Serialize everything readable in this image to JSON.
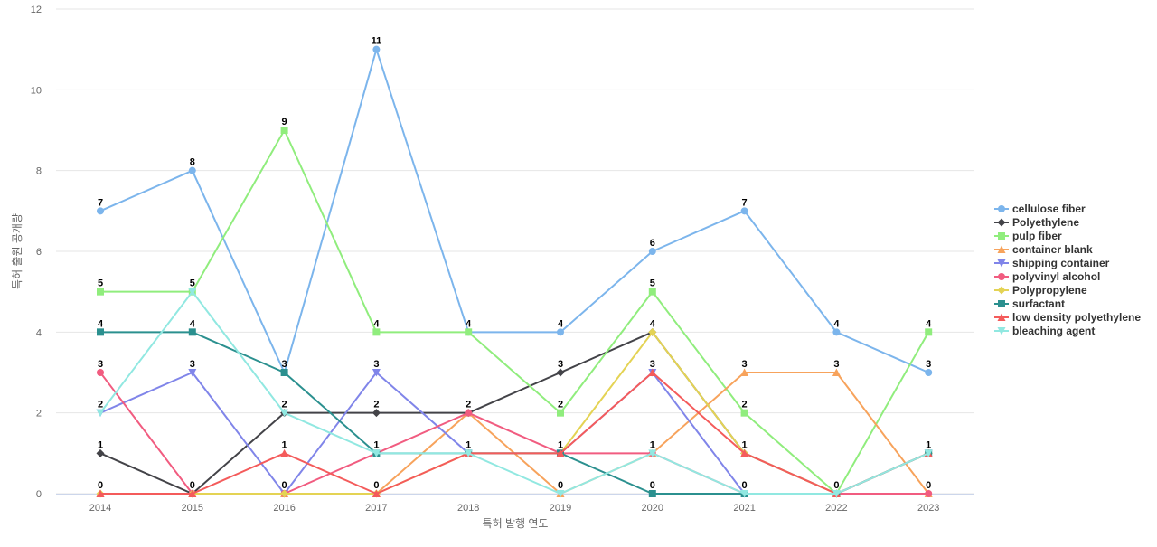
{
  "chart_data": {
    "type": "line",
    "title": "",
    "xlabel": "특허 발행 연도",
    "ylabel": "특허 출원 공개량",
    "ylim": [
      0,
      12
    ],
    "yticks": [
      0,
      2,
      4,
      6,
      8,
      10,
      12
    ],
    "grid": true,
    "legend_position": "right",
    "x": [
      "2014",
      "2015",
      "2016",
      "2017",
      "2018",
      "2019",
      "2020",
      "2021",
      "2022",
      "2023"
    ],
    "series": [
      {
        "name": "cellulose fiber",
        "color": "#7cb5ec",
        "marker": "circle",
        "values": [
          7,
          8,
          3,
          11,
          4,
          4,
          6,
          7,
          4,
          3
        ]
      },
      {
        "name": "Polyethylene",
        "color": "#434348",
        "marker": "diamond",
        "values": [
          1,
          0,
          2,
          2,
          2,
          3,
          4,
          1,
          0,
          1
        ]
      },
      {
        "name": "pulp fiber",
        "color": "#90ed7d",
        "marker": "square",
        "values": [
          5,
          5,
          9,
          4,
          4,
          2,
          5,
          2,
          0,
          4
        ]
      },
      {
        "name": "container blank",
        "color": "#f7a35c",
        "marker": "triangle",
        "values": [
          0,
          0,
          0,
          0,
          2,
          0,
          1,
          3,
          3,
          0
        ]
      },
      {
        "name": "shipping container",
        "color": "#8085e9",
        "marker": "triangle-down",
        "values": [
          2,
          3,
          0,
          3,
          1,
          1,
          3,
          0,
          0,
          1
        ]
      },
      {
        "name": "polyvinyl alcohol",
        "color": "#f15c80",
        "marker": "circle",
        "values": [
          3,
          0,
          0,
          1,
          2,
          1,
          1,
          0,
          0,
          0
        ]
      },
      {
        "name": "Polypropylene",
        "color": "#e4d354",
        "marker": "diamond",
        "values": [
          0,
          0,
          0,
          0,
          1,
          1,
          4,
          1,
          0,
          1
        ]
      },
      {
        "name": "surfactant",
        "color": "#2b908f",
        "marker": "square",
        "values": [
          4,
          4,
          3,
          1,
          1,
          1,
          0,
          0,
          0,
          1
        ]
      },
      {
        "name": "low density polyethylene",
        "color": "#f45b5b",
        "marker": "triangle",
        "values": [
          0,
          0,
          1,
          0,
          1,
          1,
          3,
          1,
          0,
          1
        ]
      },
      {
        "name": "bleaching agent",
        "color": "#91e8e1",
        "marker": "triangle-down",
        "values": [
          2,
          5,
          2,
          1,
          1,
          0,
          1,
          0,
          0,
          1
        ]
      }
    ],
    "data_labels": [
      {
        "x": "2014",
        "series": [
          "cellulose fiber",
          "pulp fiber",
          "surfactant",
          "polyvinyl alcohol",
          "shipping container",
          "Polyethylene",
          "container blank"
        ]
      },
      {
        "x": "2015",
        "series": [
          "cellulose fiber",
          "pulp fiber",
          "surfactant",
          "shipping container",
          "Polyethylene"
        ]
      },
      {
        "x": "2016",
        "series": [
          "pulp fiber",
          "surfactant",
          "Polyethylene",
          "low density polyethylene",
          "shipping container"
        ]
      },
      {
        "x": "2017",
        "series": [
          "cellulose fiber",
          "pulp fiber",
          "shipping container",
          "Polyethylene",
          "surfactant",
          "container blank"
        ]
      },
      {
        "x": "2018",
        "series": [
          "cellulose fiber",
          "Polyethylene",
          "low density polyethylene"
        ]
      },
      {
        "x": "2019",
        "series": [
          "cellulose fiber",
          "Polyethylene",
          "pulp fiber",
          "surfactant",
          "container blank"
        ]
      },
      {
        "x": "2020",
        "series": [
          "cellulose fiber",
          "pulp fiber",
          "Polyethylene",
          "shipping container",
          "container blank",
          "surfactant"
        ]
      },
      {
        "x": "2021",
        "series": [
          "cellulose fiber",
          "container blank",
          "pulp fiber",
          "low density polyethylene",
          "shipping container"
        ]
      },
      {
        "x": "2022",
        "series": [
          "cellulose fiber",
          "container blank",
          "Polyethylene"
        ]
      },
      {
        "x": "2023",
        "series": [
          "pulp fiber",
          "cellulose fiber",
          "Polyethylene",
          "polyvinyl alcohol"
        ]
      }
    ]
  }
}
